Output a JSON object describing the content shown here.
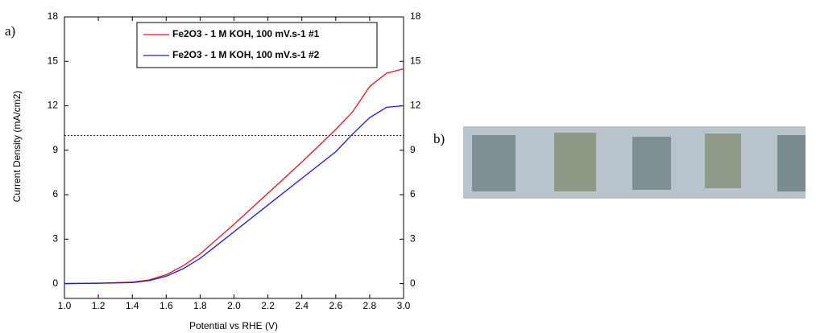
{
  "chart_data": {
    "type": "line",
    "panel_label": "a)",
    "xlabel": "Potential vs RHE (V)",
    "ylabel": "Current Density (mA/cm2)",
    "x": [
      1.0,
      1.2,
      1.4,
      1.5,
      1.6,
      1.7,
      1.8,
      1.9,
      2.0,
      2.2,
      2.4,
      2.6,
      2.7,
      2.8,
      2.9,
      3.0
    ],
    "series": [
      {
        "name": "Fe2O3 - 1 M KOH, 100 mV.s-1 #1",
        "color": "#e8141c",
        "values": [
          0,
          0.03,
          0.1,
          0.25,
          0.6,
          1.2,
          2.0,
          3.0,
          4.0,
          6.1,
          8.2,
          10.4,
          11.6,
          13.3,
          14.2,
          14.5
        ]
      },
      {
        "name": "Fe2O3 - 1 M KOH, 100 mV.s-1 #2",
        "color": "#1a1ae8",
        "values": [
          0,
          0.02,
          0.07,
          0.2,
          0.5,
          1.0,
          1.7,
          2.6,
          3.5,
          5.3,
          7.1,
          8.9,
          10.1,
          11.2,
          11.9,
          12.0
        ]
      }
    ],
    "xlim": [
      1.0,
      3.0
    ],
    "xticks": [
      {
        "value": 1,
        "label": "1.0"
      },
      1.2,
      1.4,
      1.6,
      1.8,
      {
        "value": 2,
        "label": "2.0"
      },
      2.2,
      2.4,
      2.6,
      2.8,
      {
        "value": 3,
        "label": "3.0"
      }
    ],
    "ylim": [
      -1,
      18
    ],
    "yticks": [
      0,
      3,
      6,
      9,
      12,
      15,
      18
    ],
    "y2lim": [
      -1,
      18
    ],
    "y2ticks": [
      0,
      3,
      6,
      9,
      12,
      15,
      18
    ],
    "hline": 10,
    "legend": "upper right",
    "grid": false
  },
  "photo_label": "b)"
}
